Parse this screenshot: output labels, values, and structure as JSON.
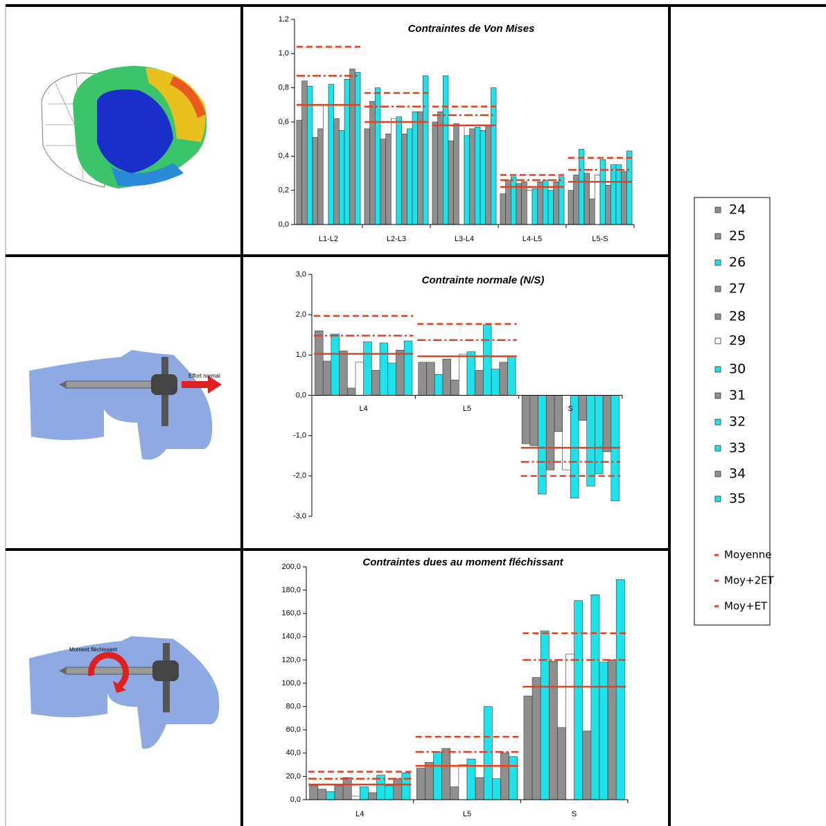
{
  "legend": {
    "position": "right",
    "series": [
      {
        "name": "24",
        "color": "#8f8f8f"
      },
      {
        "name": "25",
        "color": "#8f8f8f"
      },
      {
        "name": "26",
        "color": "#1fe3ea"
      },
      {
        "name": "27",
        "color": "#8f8f8f"
      },
      {
        "name": "28",
        "color": "#8f8f8f"
      },
      {
        "name": "29",
        "color": "#ffffff"
      },
      {
        "name": "30",
        "color": "#1fe3ea"
      },
      {
        "name": "31",
        "color": "#8f8f8f"
      },
      {
        "name": "32",
        "color": "#1fe3ea"
      },
      {
        "name": "33",
        "color": "#1fe3ea"
      },
      {
        "name": "34",
        "color": "#8f8f8f"
      },
      {
        "name": "35",
        "color": "#1fe3ea"
      }
    ],
    "lines": [
      {
        "name": "Moyenne",
        "color": "#e8401c",
        "dash": "solid"
      },
      {
        "name": "Moy+2ET",
        "color": "#e8401c",
        "dash": "dashed"
      },
      {
        "name": "Moy+ET",
        "color": "#e8401c",
        "dash": "dashdot"
      }
    ]
  },
  "figure_labels": [
    "Effort normal",
    "Moment fléchissant"
  ],
  "chart_data": [
    {
      "type": "bar",
      "title": "Contraintes de Von Mises",
      "categories": [
        "L1-L2",
        "L2-L3",
        "L3-L4",
        "L4-L5",
        "L5-S"
      ],
      "ylim": [
        0,
        1.2
      ],
      "yticks": [
        {
          "value": 0,
          "label": "0,0"
        },
        {
          "value": 0.2,
          "label": "0,2"
        },
        {
          "value": 0.4,
          "label": "0,4"
        },
        {
          "value": 0.6,
          "label": "0,6"
        },
        {
          "value": 0.8,
          "label": "0,8"
        },
        {
          "value": 1.0,
          "label": "1,0"
        },
        {
          "value": 1.2,
          "label": "1,2"
        }
      ],
      "series": [
        {
          "values": [
            0.61,
            0.56,
            0.6,
            0.18,
            0.2
          ]
        },
        {
          "values": [
            0.84,
            0.72,
            0.66,
            0.26,
            0.29
          ]
        },
        {
          "values": [
            0.81,
            0.8,
            0.87,
            0.28,
            0.44
          ]
        },
        {
          "values": [
            0.51,
            0.5,
            0.49,
            0.24,
            0.3
          ]
        },
        {
          "values": [
            0.56,
            0.53,
            0.59,
            0.25,
            0.15
          ]
        },
        {
          "values": [
            0.7,
            0.62,
            0.58,
            0.2,
            0.29
          ]
        },
        {
          "values": [
            0.82,
            0.63,
            0.52,
            0.21,
            0.38
          ]
        },
        {
          "values": [
            0.62,
            0.53,
            0.56,
            0.25,
            0.23
          ]
        },
        {
          "values": [
            0.55,
            0.56,
            0.57,
            0.26,
            0.35
          ]
        },
        {
          "values": [
            0.85,
            0.66,
            0.55,
            0.2,
            0.35
          ]
        },
        {
          "values": [
            0.91,
            0.66,
            0.58,
            0.25,
            0.31
          ]
        },
        {
          "values": [
            0.89,
            0.87,
            0.8,
            0.28,
            0.43
          ]
        }
      ],
      "lines": [
        {
          "values": [
            0.7,
            0.6,
            0.58,
            0.22,
            0.25
          ]
        },
        {
          "values": [
            1.04,
            0.77,
            0.69,
            0.29,
            0.39
          ]
        },
        {
          "values": [
            0.87,
            0.69,
            0.64,
            0.26,
            0.32
          ]
        }
      ]
    },
    {
      "type": "bar",
      "title": "Contrainte normale (N/S)",
      "categories": [
        "L4",
        "L5",
        "S"
      ],
      "ylim": [
        -3,
        3
      ],
      "yticks": [
        {
          "value": -3,
          "label": "-3,0"
        },
        {
          "value": -2,
          "label": "-2,0"
        },
        {
          "value": -1,
          "label": "-1,0"
        },
        {
          "value": 0,
          "label": "0,0"
        },
        {
          "value": 1,
          "label": "1,0"
        },
        {
          "value": 2,
          "label": "2,0"
        },
        {
          "value": 3,
          "label": "3,0"
        }
      ],
      "series": [
        {
          "values": [
            1.6,
            0.82,
            -1.2
          ]
        },
        {
          "values": [
            0.85,
            0.82,
            -1.25
          ]
        },
        {
          "values": [
            1.52,
            0.52,
            -2.45
          ]
        },
        {
          "values": [
            1.1,
            0.9,
            -1.85
          ]
        },
        {
          "values": [
            0.18,
            0.38,
            -0.9
          ]
        },
        {
          "values": [
            0.82,
            1.02,
            -1.85
          ]
        },
        {
          "values": [
            1.33,
            1.08,
            -2.55
          ]
        },
        {
          "values": [
            0.62,
            0.62,
            -0.62
          ]
        },
        {
          "values": [
            1.3,
            1.75,
            -2.25
          ]
        },
        {
          "values": [
            0.8,
            0.65,
            -1.95
          ]
        },
        {
          "values": [
            1.12,
            0.82,
            -1.4
          ]
        },
        {
          "values": [
            1.35,
            0.98,
            -2.62
          ]
        }
      ],
      "lines": [
        {
          "values": [
            1.03,
            0.97,
            -1.3
          ]
        },
        {
          "values": [
            1.97,
            1.77,
            -2.0
          ]
        },
        {
          "values": [
            1.48,
            1.37,
            -1.65
          ]
        }
      ]
    },
    {
      "type": "bar",
      "title": "Contraintes dues au moment fléchissant",
      "categories": [
        "L4",
        "L5",
        "S"
      ],
      "ylim": [
        0,
        200
      ],
      "yticks": [
        {
          "value": 0,
          "label": "0,0"
        },
        {
          "value": 20,
          "label": "20,0"
        },
        {
          "value": 40,
          "label": "40,0"
        },
        {
          "value": 60,
          "label": "60,0"
        },
        {
          "value": 80,
          "label": "80,0"
        },
        {
          "value": 100,
          "label": "100,0"
        },
        {
          "value": 120,
          "label": "120,0"
        },
        {
          "value": 140,
          "label": "140,0"
        },
        {
          "value": 160,
          "label": "160,0"
        },
        {
          "value": 180,
          "label": "180,0"
        },
        {
          "value": 200,
          "label": "200,0"
        }
      ],
      "series": [
        {
          "values": [
            12,
            27,
            89
          ]
        },
        {
          "values": [
            9,
            32,
            105
          ]
        },
        {
          "values": [
            7,
            41,
            145
          ]
        },
        {
          "values": [
            12,
            44,
            119
          ]
        },
        {
          "values": [
            19,
            11,
            62
          ]
        },
        {
          "values": [
            3,
            30,
            125
          ]
        },
        {
          "values": [
            11,
            35,
            171
          ]
        },
        {
          "values": [
            6,
            19,
            59
          ]
        },
        {
          "values": [
            21,
            80,
            176
          ]
        },
        {
          "values": [
            12,
            18,
            118
          ]
        },
        {
          "values": [
            18,
            40,
            120
          ]
        },
        {
          "values": [
            23,
            37,
            189
          ]
        }
      ],
      "lines": [
        {
          "values": [
            13,
            29,
            97
          ]
        },
        {
          "values": [
            24,
            54,
            143
          ]
        },
        {
          "values": [
            18,
            41,
            120
          ]
        }
      ]
    }
  ]
}
